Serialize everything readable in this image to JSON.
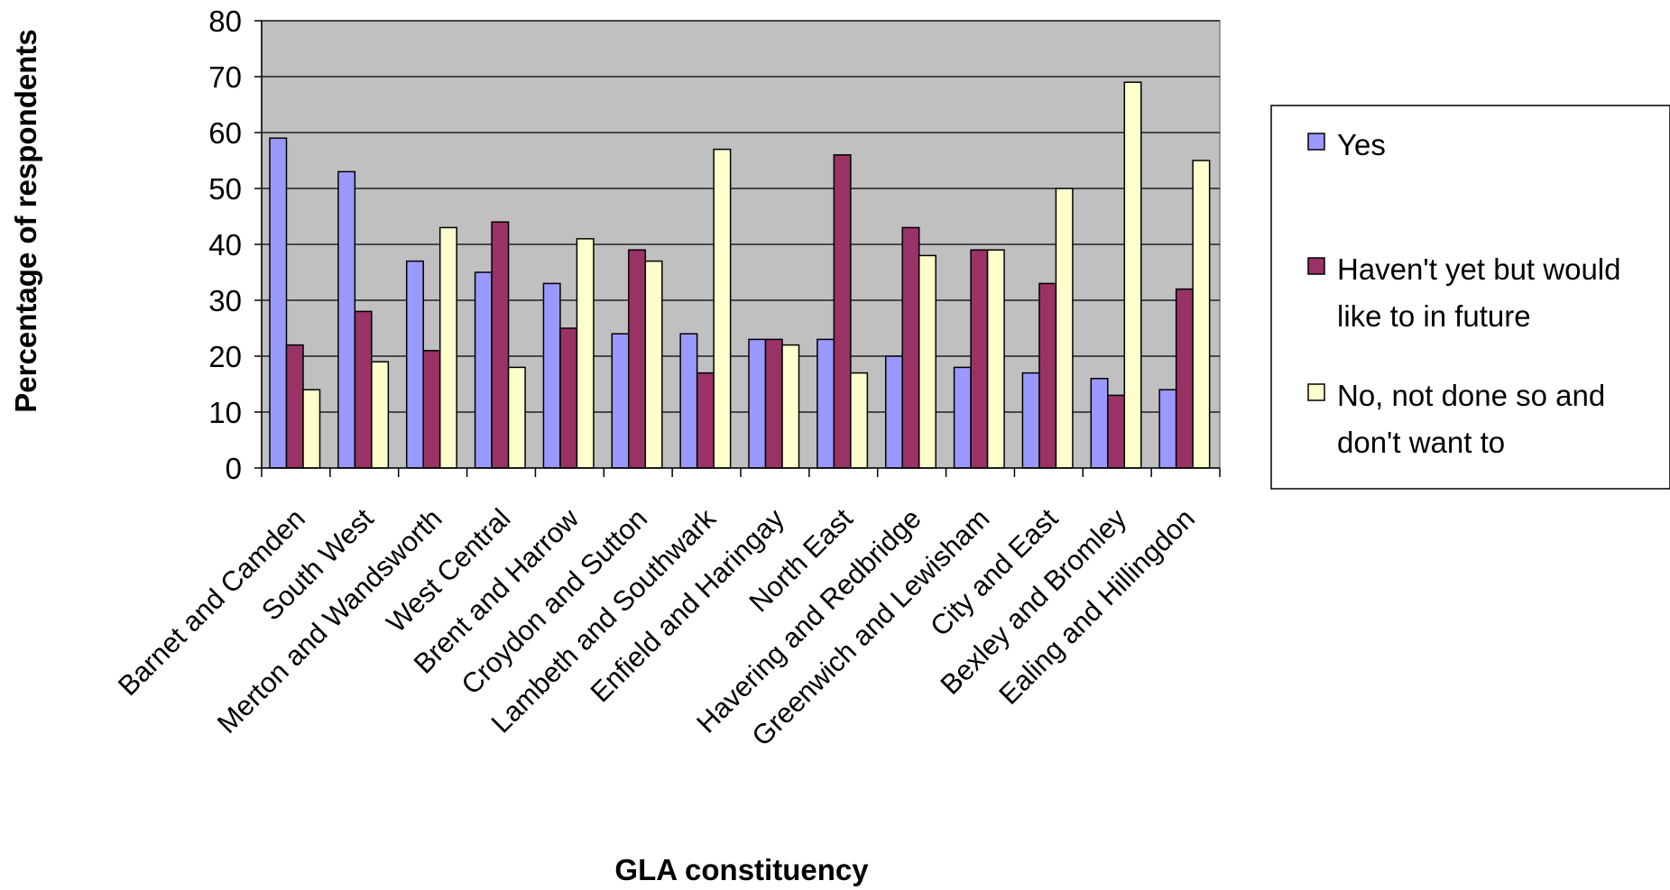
{
  "chart_data": {
    "type": "bar",
    "title": "",
    "xlabel": "GLA constituency",
    "ylabel": "Percentage of respondents",
    "ylim": [
      0,
      80
    ],
    "yticks": [
      0,
      10,
      20,
      30,
      40,
      50,
      60,
      70,
      80
    ],
    "grid": true,
    "legend_position": "right",
    "categories": [
      "Barnet and Camden",
      "South West",
      "Merton and Wandsworth",
      "West Central",
      "Brent and Harrow",
      "Croydon and Sutton",
      "Lambeth and Southwark",
      "Enfield and Haringay",
      "North East",
      "Havering and Redbridge",
      "Greenwich and Lewisham",
      "City and East",
      "Bexley and Bromley",
      "Ealing and Hillingdon"
    ],
    "series": [
      {
        "name": "Yes",
        "color": "#9999ff",
        "values": [
          59,
          53,
          37,
          35,
          33,
          24,
          24,
          23,
          23,
          20,
          18,
          17,
          16,
          14
        ]
      },
      {
        "name": "Haven't yet but would like to in future",
        "color": "#993366",
        "values": [
          22,
          28,
          21,
          44,
          25,
          39,
          17,
          23,
          56,
          43,
          39,
          33,
          13,
          32
        ]
      },
      {
        "name": "No, not done so and don't want to",
        "color": "#ffffcc",
        "values": [
          14,
          19,
          43,
          18,
          41,
          37,
          57,
          22,
          17,
          38,
          39,
          50,
          69,
          55
        ]
      }
    ],
    "plot_background": "#c0c0c0"
  }
}
